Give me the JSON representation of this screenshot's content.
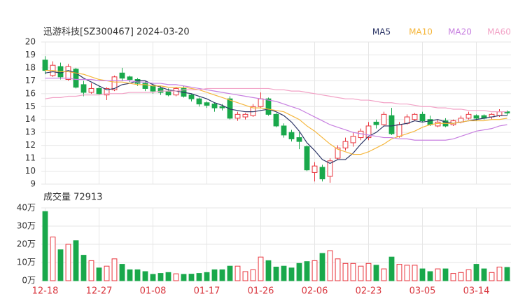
{
  "chart_data": [
    {
      "type": "candlestick",
      "title": "迅游科技[SZ300467] 2024-03-20",
      "up_color": "#e8343c",
      "down_color": "#19a84b",
      "grid": true,
      "ylim": [
        9,
        20
      ],
      "yticks": [
        9,
        10,
        11,
        12,
        13,
        14,
        15,
        16,
        17,
        18,
        19,
        20
      ],
      "open": [
        18.6,
        17.4,
        18.1,
        17.1,
        17.9,
        16.7,
        16.1,
        16.4,
        15.9,
        16.3,
        17.6,
        17.3,
        17.1,
        16.8,
        16.6,
        16.4,
        16.2,
        15.9,
        16.4,
        15.9,
        15.6,
        15.3,
        15.2,
        15.0,
        15.6,
        14.1,
        14.2,
        14.3,
        15.0,
        15.6,
        14.4,
        13.5,
        13.0,
        12.6,
        11.9,
        9.9,
        10.3,
        9.6,
        11.0,
        11.8,
        12.2,
        12.6,
        12.6,
        13.8,
        13.6,
        14.3,
        12.7,
        13.7,
        14.0,
        14.4,
        14.0,
        13.5,
        13.9,
        13.6,
        13.8,
        14.1,
        14.3,
        14.3,
        14.2,
        14.3,
        14.6
      ],
      "high": [
        18.9,
        18.5,
        18.4,
        18.3,
        18.0,
        17.0,
        16.8,
        16.6,
        16.5,
        17.4,
        18.0,
        17.4,
        17.2,
        17.0,
        16.8,
        16.6,
        16.4,
        16.5,
        16.6,
        16.0,
        15.7,
        15.4,
        15.3,
        15.2,
        15.8,
        14.6,
        14.5,
        15.2,
        16.1,
        15.7,
        14.5,
        13.7,
        13.2,
        13.0,
        12.0,
        10.7,
        10.5,
        11.0,
        12.0,
        12.6,
        13.0,
        13.3,
        13.8,
        14.0,
        14.6,
        14.9,
        13.8,
        14.4,
        14.5,
        14.6,
        14.3,
        14.0,
        14.1,
        14.0,
        14.3,
        14.6,
        14.4,
        14.4,
        14.5,
        14.8,
        14.7
      ],
      "low": [
        17.5,
        17.3,
        17.1,
        17.0,
        16.4,
        15.8,
        16.0,
        15.9,
        15.5,
        16.2,
        17.0,
        16.9,
        16.6,
        16.2,
        16.0,
        15.9,
        15.8,
        15.8,
        15.7,
        15.4,
        15.0,
        14.9,
        14.6,
        14.7,
        14.0,
        13.9,
        14.0,
        14.2,
        14.9,
        14.3,
        13.4,
        12.6,
        12.3,
        11.7,
        10.0,
        9.2,
        9.2,
        9.1,
        10.9,
        11.6,
        11.9,
        12.4,
        12.4,
        13.3,
        13.5,
        12.8,
        12.6,
        13.6,
        13.9,
        13.8,
        13.5,
        13.4,
        13.4,
        13.5,
        13.7,
        14.0,
        13.9,
        14.0,
        14.0,
        14.2,
        14.3
      ],
      "close": [
        17.8,
        18.2,
        17.3,
        18.1,
        16.5,
        16.1,
        16.4,
        16.0,
        16.4,
        17.3,
        17.2,
        17.1,
        16.8,
        16.4,
        16.2,
        16.1,
        15.9,
        16.4,
        15.8,
        15.6,
        15.2,
        15.1,
        14.9,
        14.9,
        14.1,
        14.4,
        14.4,
        15.0,
        15.6,
        14.4,
        13.5,
        12.8,
        12.5,
        12.3,
        10.1,
        10.4,
        9.4,
        10.8,
        11.8,
        12.3,
        12.7,
        13.1,
        13.5,
        13.6,
        14.4,
        12.9,
        13.6,
        14.2,
        14.4,
        13.9,
        13.6,
        13.8,
        13.5,
        13.9,
        14.1,
        14.4,
        14.1,
        14.1,
        14.4,
        14.6,
        14.5
      ],
      "series": [
        {
          "name": "MA5",
          "color": "#2c3566",
          "values": [
            17.6,
            17.7,
            17.6,
            17.8,
            17.6,
            17.2,
            16.9,
            16.6,
            16.3,
            16.4,
            16.7,
            16.8,
            17.0,
            17.0,
            16.7,
            16.5,
            16.3,
            16.2,
            16.1,
            16.0,
            15.8,
            15.6,
            15.3,
            15.1,
            14.8,
            14.7,
            14.6,
            14.6,
            14.7,
            14.8,
            14.6,
            14.3,
            13.8,
            13.1,
            12.2,
            11.6,
            10.9,
            10.6,
            10.9,
            10.9,
            11.4,
            12.1,
            12.7,
            13.0,
            13.5,
            13.5,
            13.6,
            13.7,
            13.9,
            13.8,
            13.9,
            14.0,
            13.8,
            13.7,
            13.8,
            13.9,
            14.0,
            14.1,
            14.2,
            14.3,
            14.3
          ]
        },
        {
          "name": "MA10",
          "color": "#f5b63c",
          "values": [
            17.8,
            17.8,
            17.7,
            17.7,
            17.6,
            17.5,
            17.3,
            17.1,
            17.0,
            16.9,
            16.9,
            16.8,
            16.7,
            16.7,
            16.6,
            16.6,
            16.5,
            16.5,
            16.5,
            16.4,
            16.3,
            16.1,
            15.9,
            15.7,
            15.5,
            15.3,
            15.1,
            14.9,
            14.9,
            14.8,
            14.7,
            14.6,
            14.3,
            14.0,
            13.5,
            13.1,
            12.6,
            12.1,
            11.7,
            11.5,
            11.3,
            11.3,
            11.5,
            11.8,
            12.1,
            12.5,
            12.7,
            12.9,
            13.1,
            13.4,
            13.6,
            13.7,
            13.7,
            13.7,
            13.8,
            13.9,
            13.9,
            13.9,
            14.0,
            14.0,
            14.1
          ]
        },
        {
          "name": "MA20",
          "color": "#c77fe0",
          "values": [
            17.2,
            17.2,
            17.2,
            17.2,
            17.1,
            17.1,
            17.1,
            17.0,
            17.0,
            17.0,
            17.0,
            17.0,
            16.9,
            16.9,
            16.8,
            16.8,
            16.7,
            16.7,
            16.6,
            16.5,
            16.4,
            16.3,
            16.2,
            16.1,
            16.0,
            15.9,
            15.8,
            15.7,
            15.6,
            15.5,
            15.4,
            15.2,
            15.0,
            14.8,
            14.5,
            14.2,
            13.9,
            13.6,
            13.4,
            13.2,
            13.0,
            12.9,
            12.8,
            12.7,
            12.6,
            12.6,
            12.5,
            12.5,
            12.4,
            12.4,
            12.4,
            12.4,
            12.4,
            12.5,
            12.7,
            12.9,
            13.1,
            13.2,
            13.3,
            13.5,
            13.6
          ]
        },
        {
          "name": "MA60",
          "color": "#f2a2c6",
          "values": [
            15.6,
            15.7,
            15.7,
            15.8,
            15.8,
            15.9,
            15.9,
            15.9,
            16.0,
            16.0,
            16.0,
            16.1,
            16.1,
            16.1,
            16.1,
            16.2,
            16.2,
            16.2,
            16.3,
            16.3,
            16.3,
            16.4,
            16.4,
            16.4,
            16.4,
            16.4,
            16.4,
            16.4,
            16.4,
            16.4,
            16.3,
            16.3,
            16.2,
            16.2,
            16.1,
            16.0,
            15.9,
            15.8,
            15.7,
            15.6,
            15.6,
            15.5,
            15.5,
            15.4,
            15.3,
            15.3,
            15.2,
            15.2,
            15.1,
            15.0,
            15.0,
            14.9,
            14.9,
            14.8,
            14.8,
            14.7,
            14.7,
            14.7,
            14.6,
            14.6,
            14.6
          ]
        }
      ]
    },
    {
      "type": "bar",
      "title": "成交量 72913",
      "grid": true,
      "ylim": [
        0,
        40
      ],
      "yticks": [
        {
          "value": 0,
          "label": "0万"
        },
        {
          "value": 10,
          "label": "10万"
        },
        {
          "value": 20,
          "label": "20万"
        },
        {
          "value": 30,
          "label": "30万"
        },
        {
          "value": 40,
          "label": "40万"
        }
      ],
      "categories": [
        "12-18",
        null,
        null,
        null,
        null,
        null,
        null,
        "12-27",
        null,
        null,
        null,
        null,
        null,
        null,
        "01-08",
        null,
        null,
        null,
        null,
        null,
        null,
        "01-17",
        null,
        null,
        null,
        null,
        null,
        null,
        "01-26",
        null,
        null,
        null,
        null,
        null,
        null,
        "02-06",
        null,
        null,
        null,
        null,
        null,
        null,
        "02-23",
        null,
        null,
        null,
        null,
        null,
        null,
        "03-05",
        null,
        null,
        null,
        null,
        null,
        null,
        "03-14",
        null,
        null,
        null,
        null
      ],
      "values": [
        38,
        24,
        17,
        20,
        22,
        14,
        11,
        7,
        8,
        12,
        9,
        6,
        6,
        5,
        3.5,
        4,
        4.5,
        3.8,
        3.5,
        3.6,
        4,
        4.5,
        6,
        6,
        8,
        8,
        5,
        6,
        13,
        11,
        7.5,
        8,
        7,
        9.5,
        10.5,
        11,
        15,
        16.5,
        12,
        9.5,
        9.5,
        8,
        9.5,
        8.5,
        6.5,
        13,
        9,
        8.5,
        8.5,
        6.5,
        5,
        6.5,
        6.5,
        4,
        4.5,
        6,
        9,
        6.5,
        4.5,
        7.5,
        7.2913
      ]
    }
  ]
}
